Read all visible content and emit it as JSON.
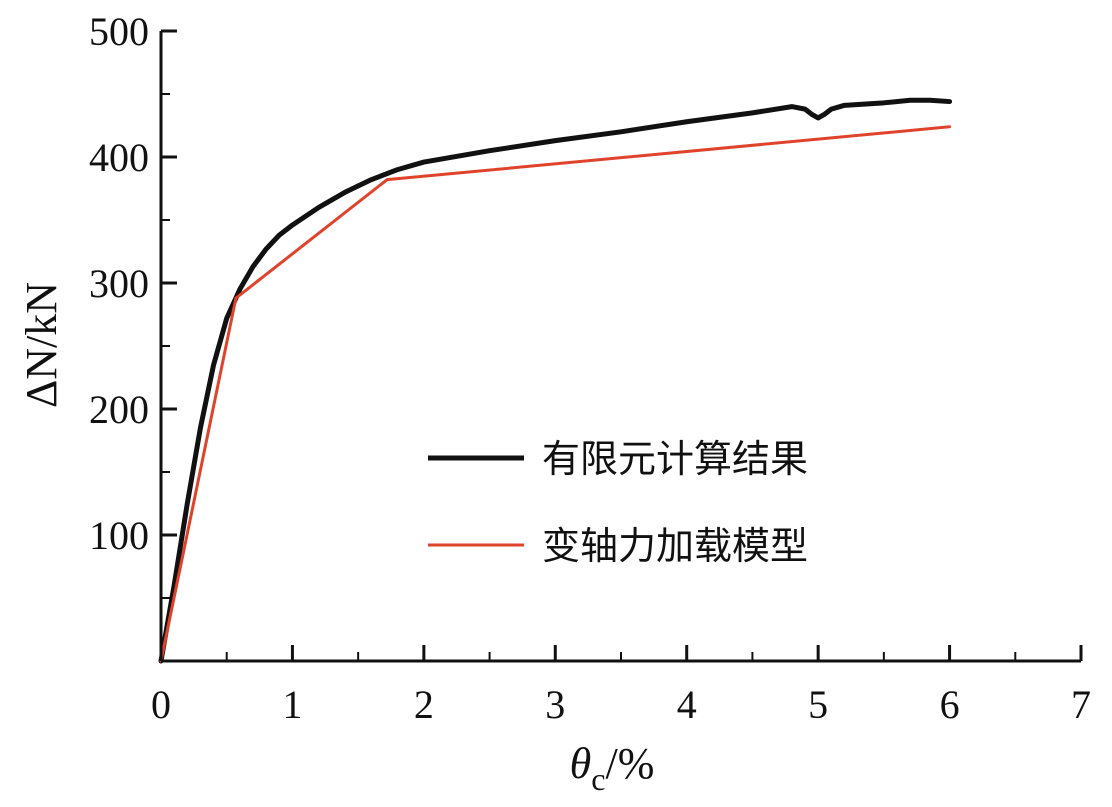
{
  "chart_data": {
    "type": "line",
    "xlabel": "θc/%",
    "xlabel_main": "θ",
    "xlabel_sub": "c",
    "xlabel_unit": "/%",
    "ylabel": "ΔN/kN",
    "xlim": [
      0,
      7
    ],
    "ylim": [
      0,
      500
    ],
    "xticks": [
      0,
      1,
      2,
      3,
      4,
      5,
      6,
      7
    ],
    "yticks": [
      100,
      200,
      300,
      400,
      500
    ],
    "grid": false,
    "legend_position": "center-right",
    "series": [
      {
        "name": "有限元计算结果",
        "color": "#111111",
        "points": [
          [
            0,
            0
          ],
          [
            0.1,
            60
          ],
          [
            0.2,
            125
          ],
          [
            0.3,
            185
          ],
          [
            0.4,
            235
          ],
          [
            0.5,
            272
          ],
          [
            0.6,
            295
          ],
          [
            0.7,
            313
          ],
          [
            0.8,
            327
          ],
          [
            0.9,
            338
          ],
          [
            1.0,
            346
          ],
          [
            1.2,
            360
          ],
          [
            1.4,
            372
          ],
          [
            1.6,
            382
          ],
          [
            1.8,
            390
          ],
          [
            2.0,
            396
          ],
          [
            2.5,
            405
          ],
          [
            3.0,
            413
          ],
          [
            3.5,
            420
          ],
          [
            4.0,
            428
          ],
          [
            4.5,
            435
          ],
          [
            4.8,
            440
          ],
          [
            4.9,
            438
          ],
          [
            4.95,
            434
          ],
          [
            5.0,
            431
          ],
          [
            5.05,
            434
          ],
          [
            5.1,
            438
          ],
          [
            5.2,
            441
          ],
          [
            5.5,
            443
          ],
          [
            5.7,
            445
          ],
          [
            5.85,
            445
          ],
          [
            6.0,
            444
          ]
        ]
      },
      {
        "name": "变轴力加载模型",
        "color": "#e0432b",
        "points": [
          [
            0,
            0
          ],
          [
            0.57,
            288
          ],
          [
            1.72,
            382
          ],
          [
            6.0,
            424
          ]
        ]
      }
    ]
  }
}
